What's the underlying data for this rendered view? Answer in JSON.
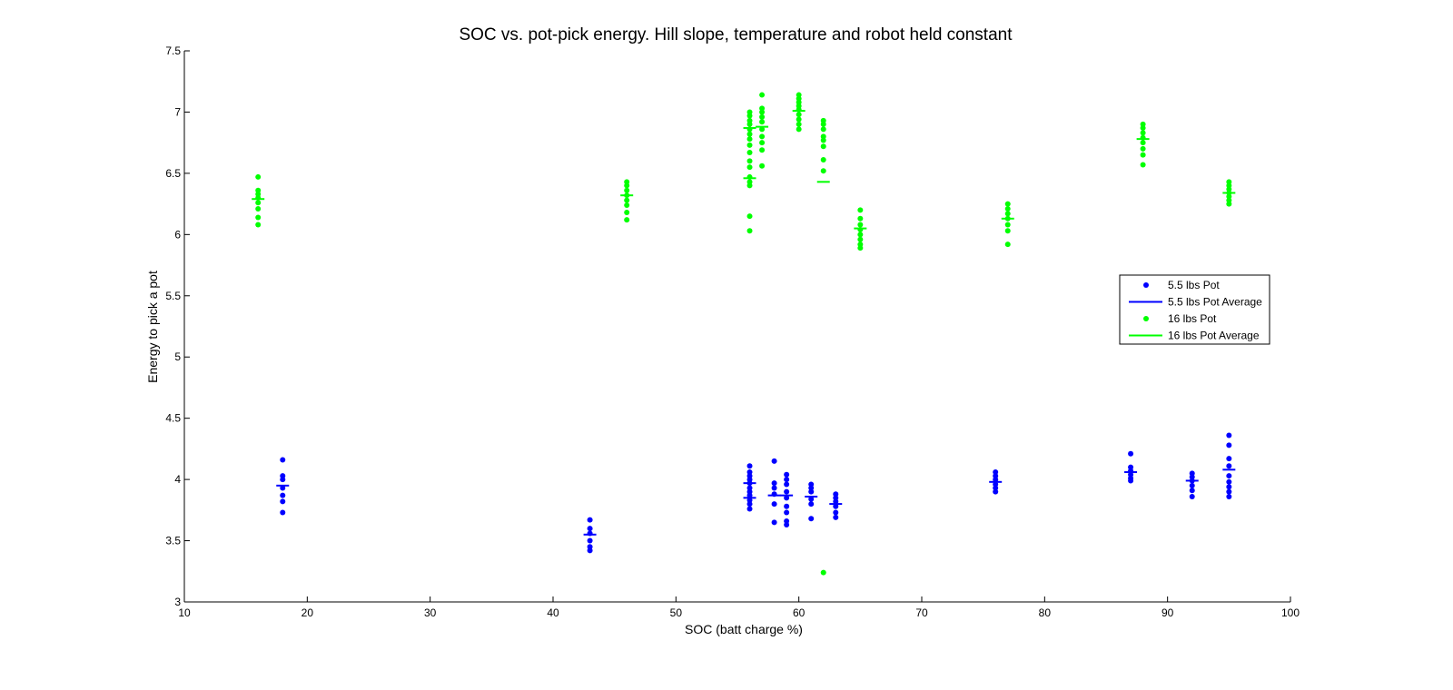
{
  "chart_data": {
    "type": "scatter",
    "title": "SOC vs. pot-pick energy. Hill slope, temperature and robot held constant",
    "xlabel": "SOC (batt charge %)",
    "ylabel": "Energy to pick a pot",
    "xlim": [
      10,
      100
    ],
    "ylim": [
      3,
      7.5
    ],
    "xticks": [
      "10",
      "20",
      "30",
      "40",
      "50",
      "60",
      "70",
      "80",
      "90",
      "100"
    ],
    "yticks": [
      "3",
      "3.5",
      "4",
      "4.5",
      "5",
      "5.5",
      "6",
      "6.5",
      "7",
      "7.5"
    ],
    "grid": false,
    "legend_position": "right",
    "series": [
      {
        "name": "5.5 lbs Pot",
        "kind": "points",
        "color": "#0000ff",
        "points": [
          [
            18,
            4.16
          ],
          [
            18,
            4.03
          ],
          [
            18,
            4.0
          ],
          [
            18,
            3.93
          ],
          [
            18,
            3.87
          ],
          [
            18,
            3.82
          ],
          [
            18,
            3.73
          ],
          [
            43,
            3.67
          ],
          [
            43,
            3.6
          ],
          [
            43,
            3.56
          ],
          [
            43,
            3.5
          ],
          [
            43,
            3.45
          ],
          [
            43,
            3.42
          ],
          [
            56,
            4.11
          ],
          [
            56,
            4.06
          ],
          [
            56,
            4.03
          ],
          [
            56,
            4.0
          ],
          [
            56,
            3.97
          ],
          [
            56,
            3.93
          ],
          [
            56,
            3.9
          ],
          [
            56,
            3.87
          ],
          [
            56,
            3.83
          ],
          [
            56,
            3.8
          ],
          [
            56,
            3.76
          ],
          [
            58,
            4.15
          ],
          [
            58,
            3.97
          ],
          [
            58,
            3.93
          ],
          [
            58,
            3.88
          ],
          [
            58,
            3.8
          ],
          [
            58,
            3.65
          ],
          [
            59,
            4.04
          ],
          [
            59,
            4.0
          ],
          [
            59,
            3.96
          ],
          [
            59,
            3.9
          ],
          [
            59,
            3.85
          ],
          [
            59,
            3.78
          ],
          [
            59,
            3.73
          ],
          [
            59,
            3.66
          ],
          [
            59,
            3.63
          ],
          [
            61,
            3.96
          ],
          [
            61,
            3.93
          ],
          [
            61,
            3.9
          ],
          [
            61,
            3.84
          ],
          [
            61,
            3.8
          ],
          [
            61,
            3.68
          ],
          [
            63,
            3.88
          ],
          [
            63,
            3.85
          ],
          [
            63,
            3.82
          ],
          [
            63,
            3.78
          ],
          [
            63,
            3.73
          ],
          [
            63,
            3.69
          ],
          [
            76,
            4.06
          ],
          [
            76,
            4.03
          ],
          [
            76,
            4.0
          ],
          [
            76,
            3.96
          ],
          [
            76,
            3.93
          ],
          [
            76,
            3.9
          ],
          [
            87,
            4.21
          ],
          [
            87,
            4.1
          ],
          [
            87,
            4.07
          ],
          [
            87,
            4.04
          ],
          [
            87,
            4.01
          ],
          [
            87,
            3.99
          ],
          [
            92,
            4.05
          ],
          [
            92,
            4.02
          ],
          [
            92,
            3.99
          ],
          [
            92,
            3.95
          ],
          [
            92,
            3.91
          ],
          [
            92,
            3.86
          ],
          [
            95,
            4.36
          ],
          [
            95,
            4.28
          ],
          [
            95,
            4.17
          ],
          [
            95,
            4.11
          ],
          [
            95,
            4.03
          ],
          [
            95,
            3.98
          ],
          [
            95,
            3.94
          ],
          [
            95,
            3.9
          ],
          [
            95,
            3.86
          ]
        ]
      },
      {
        "name": "5.5 lbs Pot Average",
        "kind": "avgbars",
        "color": "#0000ff",
        "points": [
          [
            18,
            3.95
          ],
          [
            43,
            3.55
          ],
          [
            56,
            3.97
          ],
          [
            56,
            3.85
          ],
          [
            58,
            3.87
          ],
          [
            59,
            3.87
          ],
          [
            61,
            3.86
          ],
          [
            63,
            3.8
          ],
          [
            76,
            3.98
          ],
          [
            87,
            4.06
          ],
          [
            92,
            3.99
          ],
          [
            95,
            4.08
          ]
        ]
      },
      {
        "name": "16 lbs Pot",
        "kind": "points",
        "color": "#00ff00",
        "points": [
          [
            16,
            6.47
          ],
          [
            16,
            6.36
          ],
          [
            16,
            6.33
          ],
          [
            16,
            6.3
          ],
          [
            16,
            6.26
          ],
          [
            16,
            6.21
          ],
          [
            16,
            6.14
          ],
          [
            16,
            6.08
          ],
          [
            46,
            6.43
          ],
          [
            46,
            6.4
          ],
          [
            46,
            6.36
          ],
          [
            46,
            6.32
          ],
          [
            46,
            6.28
          ],
          [
            46,
            6.24
          ],
          [
            46,
            6.18
          ],
          [
            46,
            6.12
          ],
          [
            56,
            7.0
          ],
          [
            56,
            6.97
          ],
          [
            56,
            6.93
          ],
          [
            56,
            6.9
          ],
          [
            56,
            6.86
          ],
          [
            56,
            6.82
          ],
          [
            56,
            6.78
          ],
          [
            56,
            6.73
          ],
          [
            56,
            6.67
          ],
          [
            56,
            6.6
          ],
          [
            56,
            6.55
          ],
          [
            56,
            6.47
          ],
          [
            56,
            6.43
          ],
          [
            56,
            6.4
          ],
          [
            56,
            6.15
          ],
          [
            56,
            6.03
          ],
          [
            57,
            7.14
          ],
          [
            57,
            7.03
          ],
          [
            57,
            7.0
          ],
          [
            57,
            6.96
          ],
          [
            57,
            6.92
          ],
          [
            57,
            6.86
          ],
          [
            57,
            6.8
          ],
          [
            57,
            6.75
          ],
          [
            57,
            6.69
          ],
          [
            57,
            6.56
          ],
          [
            60,
            7.14
          ],
          [
            60,
            7.11
          ],
          [
            60,
            7.08
          ],
          [
            60,
            7.05
          ],
          [
            60,
            7.02
          ],
          [
            60,
            6.98
          ],
          [
            60,
            6.94
          ],
          [
            60,
            6.9
          ],
          [
            60,
            6.86
          ],
          [
            62,
            6.93
          ],
          [
            62,
            6.9
          ],
          [
            62,
            6.86
          ],
          [
            62,
            6.8
          ],
          [
            62,
            6.77
          ],
          [
            62,
            6.72
          ],
          [
            62,
            6.61
          ],
          [
            62,
            6.52
          ],
          [
            62,
            3.24
          ],
          [
            65,
            6.2
          ],
          [
            65,
            6.13
          ],
          [
            65,
            6.08
          ],
          [
            65,
            6.04
          ],
          [
            65,
            6.0
          ],
          [
            65,
            5.96
          ],
          [
            65,
            5.92
          ],
          [
            65,
            5.89
          ],
          [
            77,
            6.25
          ],
          [
            77,
            6.21
          ],
          [
            77,
            6.17
          ],
          [
            77,
            6.13
          ],
          [
            77,
            6.08
          ],
          [
            77,
            6.03
          ],
          [
            77,
            5.92
          ],
          [
            88,
            6.9
          ],
          [
            88,
            6.87
          ],
          [
            88,
            6.83
          ],
          [
            88,
            6.79
          ],
          [
            88,
            6.75
          ],
          [
            88,
            6.7
          ],
          [
            88,
            6.65
          ],
          [
            88,
            6.57
          ],
          [
            95,
            6.43
          ],
          [
            95,
            6.4
          ],
          [
            95,
            6.37
          ],
          [
            95,
            6.34
          ],
          [
            95,
            6.31
          ],
          [
            95,
            6.28
          ],
          [
            95,
            6.25
          ]
        ]
      },
      {
        "name": "16 lbs Pot Average",
        "kind": "avgbars",
        "color": "#00ff00",
        "points": [
          [
            16,
            6.29
          ],
          [
            46,
            6.32
          ],
          [
            56,
            6.87
          ],
          [
            56,
            6.46
          ],
          [
            57,
            6.88
          ],
          [
            60,
            7.01
          ],
          [
            62,
            6.43
          ],
          [
            65,
            6.05
          ],
          [
            77,
            6.13
          ],
          [
            88,
            6.78
          ],
          [
            95,
            6.34
          ]
        ]
      }
    ]
  }
}
